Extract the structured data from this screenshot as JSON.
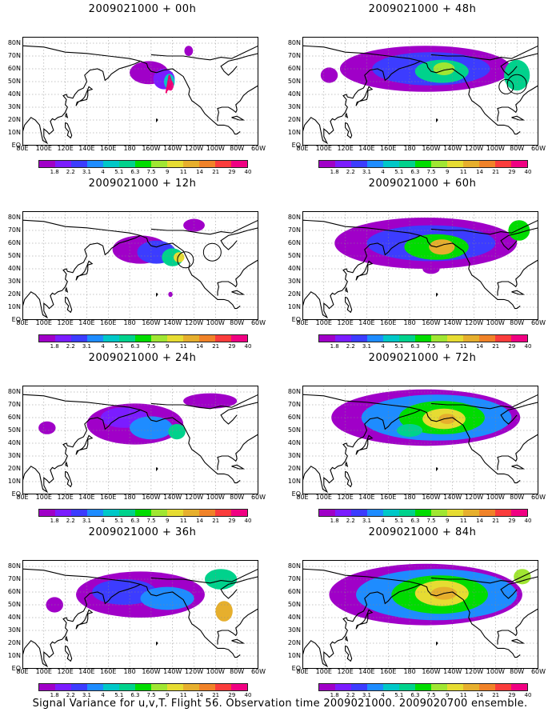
{
  "caption": "Signal Variance for u,v,T. Flight 56. Observation time 2009021000. 2009020700 ensemble.",
  "y_ticks": [
    "80N",
    "70N",
    "60N",
    "50N",
    "40N",
    "30N",
    "20N",
    "10N",
    "EQ"
  ],
  "x_ticks": [
    "80E",
    "100E",
    "120E",
    "140E",
    "160E",
    "180",
    "160W",
    "140W",
    "120W",
    "100W",
    "80W",
    "60W"
  ],
  "colorbar": {
    "levels": [
      "1.8",
      "2.2",
      "3.1",
      "4",
      "5.1",
      "6.3",
      "7.5",
      "9",
      "11",
      "14",
      "21",
      "29",
      "40"
    ],
    "colors": [
      "#a000c8",
      "#7b1cff",
      "#3c3cff",
      "#1e8cff",
      "#00c8c8",
      "#00d28c",
      "#00dc00",
      "#a0e632",
      "#e6dc32",
      "#e6af2d",
      "#f08228",
      "#fa3c3c",
      "#f00082"
    ]
  },
  "panels": [
    {
      "title": "2009021000 + 00h",
      "col": 0,
      "row": 0,
      "intensity": 0
    },
    {
      "title": "2009021000 + 12h",
      "col": 0,
      "row": 1,
      "intensity": 1
    },
    {
      "title": "2009021000 + 24h",
      "col": 0,
      "row": 2,
      "intensity": 2
    },
    {
      "title": "2009021000 + 36h",
      "col": 0,
      "row": 3,
      "intensity": 3
    },
    {
      "title": "2009021000 + 48h",
      "col": 1,
      "row": 0,
      "intensity": 4
    },
    {
      "title": "2009021000 + 60h",
      "col": 1,
      "row": 1,
      "intensity": 5
    },
    {
      "title": "2009021000 + 72h",
      "col": 1,
      "row": 2,
      "intensity": 6
    },
    {
      "title": "2009021000 + 84h",
      "col": 1,
      "row": 3,
      "intensity": 7
    }
  ]
}
